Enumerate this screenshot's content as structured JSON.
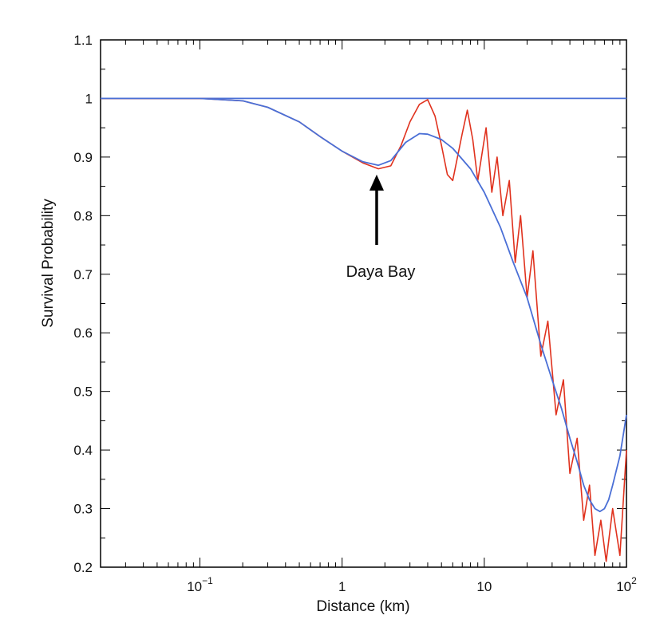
{
  "chart_data": {
    "type": "line",
    "xlabel": "Distance (km)",
    "ylabel": "Survival Probability",
    "xscale": "log",
    "xlim": [
      0.02,
      100
    ],
    "ylim": [
      0.2,
      1.1
    ],
    "grid": false,
    "x_ticks": [
      {
        "value": 0.1,
        "base": "10",
        "exp": "−1"
      },
      {
        "value": 1,
        "base": "1",
        "exp": ""
      },
      {
        "value": 10,
        "base": "10",
        "exp": ""
      },
      {
        "value": 100,
        "base": "10",
        "exp": "2"
      }
    ],
    "y_ticks": [
      "0.2",
      "0.3",
      "0.4",
      "0.5",
      "0.6",
      "0.7",
      "0.8",
      "0.9",
      "1",
      "1.1"
    ],
    "colors": {
      "red": "#e0321e",
      "blue": "#4a6fd6",
      "arrow": "#000000"
    },
    "series": [
      {
        "color": "#4a6fd6",
        "style": "flat reference line",
        "x": [
          0.02,
          100
        ],
        "y": [
          1.0,
          1.0
        ]
      },
      {
        "color": "#e0321e",
        "style": "fast oscillation",
        "x": [
          0.02,
          0.1,
          0.2,
          0.3,
          0.5,
          0.7,
          1.0,
          1.4,
          1.8,
          2.2,
          2.6,
          3.0,
          3.5,
          4.0,
          4.5,
          5.0,
          5.5,
          6.0,
          7.0,
          7.6,
          8.3,
          9.0,
          10.3,
          11.3,
          12.3,
          13.5,
          15.0,
          16.5,
          18.0,
          20.0,
          22.0,
          25.0,
          28.0,
          32.0,
          36.0,
          40.0,
          45.0,
          50.0,
          55.0,
          60.0,
          66.0,
          72.0,
          80.0,
          90.0,
          100.0
        ],
        "y": [
          1.0,
          1.0,
          0.996,
          0.985,
          0.96,
          0.935,
          0.91,
          0.89,
          0.88,
          0.885,
          0.92,
          0.96,
          0.99,
          0.998,
          0.97,
          0.92,
          0.87,
          0.86,
          0.94,
          0.98,
          0.93,
          0.86,
          0.95,
          0.84,
          0.9,
          0.8,
          0.86,
          0.72,
          0.8,
          0.66,
          0.74,
          0.56,
          0.62,
          0.46,
          0.52,
          0.36,
          0.42,
          0.28,
          0.34,
          0.22,
          0.28,
          0.21,
          0.3,
          0.22,
          0.4
        ]
      },
      {
        "color": "#4a6fd6",
        "style": "averaged",
        "x": [
          0.02,
          0.1,
          0.2,
          0.3,
          0.5,
          0.7,
          1.0,
          1.4,
          1.8,
          2.2,
          2.8,
          3.5,
          4.0,
          5.0,
          6.0,
          8.0,
          10.0,
          13.0,
          16.0,
          20.0,
          25.0,
          30.0,
          35.0,
          40.0,
          45.0,
          50.0,
          55.0,
          60.0,
          65.0,
          70.0,
          75.0,
          80.0,
          90.0,
          100.0
        ],
        "y": [
          1.0,
          1.0,
          0.996,
          0.985,
          0.96,
          0.935,
          0.91,
          0.892,
          0.886,
          0.894,
          0.925,
          0.94,
          0.939,
          0.93,
          0.915,
          0.88,
          0.84,
          0.78,
          0.72,
          0.66,
          0.58,
          0.52,
          0.47,
          0.42,
          0.38,
          0.34,
          0.315,
          0.3,
          0.295,
          0.3,
          0.315,
          0.34,
          0.39,
          0.46
        ]
      }
    ],
    "annotation": {
      "text": "Daya Bay",
      "arrow_tip": {
        "x": 1.75,
        "y": 0.87
      },
      "arrow_tail": {
        "x": 1.75,
        "y": 0.75
      }
    }
  }
}
